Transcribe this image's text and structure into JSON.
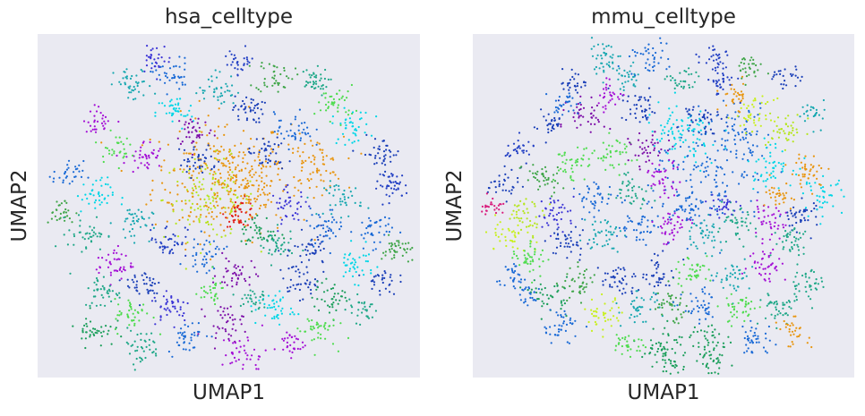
{
  "chart_data": [
    {
      "type": "scatter",
      "title": "hsa_celltype",
      "xlabel": "UMAP1",
      "ylabel": "UMAP2",
      "xticks": [],
      "yticks": [],
      "grid": false,
      "legend": "none",
      "background": "#eaeaf2",
      "clusters": [
        {
          "x": 0.48,
          "y": 0.58,
          "n": 260,
          "spread": 0.09,
          "color": "#e8950f"
        },
        {
          "x": 0.45,
          "y": 0.52,
          "n": 120,
          "spread": 0.06,
          "color": "#b5e61d"
        },
        {
          "x": 0.55,
          "y": 0.55,
          "n": 90,
          "spread": 0.05,
          "color": "#e8950f"
        },
        {
          "x": 0.53,
          "y": 0.48,
          "n": 40,
          "spread": 0.02,
          "color": "#e0201b"
        },
        {
          "x": 0.72,
          "y": 0.62,
          "n": 70,
          "spread": 0.04,
          "color": "#e8950f"
        },
        {
          "x": 0.36,
          "y": 0.77,
          "n": 40,
          "spread": 0.025,
          "color": "#00d6e6"
        },
        {
          "x": 0.41,
          "y": 0.72,
          "n": 40,
          "spread": 0.025,
          "color": "#7c0da8"
        },
        {
          "x": 0.28,
          "y": 0.64,
          "n": 40,
          "spread": 0.025,
          "color": "#a40fd6"
        },
        {
          "x": 0.62,
          "y": 0.88,
          "n": 40,
          "spread": 0.025,
          "color": "#3fa548"
        },
        {
          "x": 0.72,
          "y": 0.86,
          "n": 40,
          "spread": 0.02,
          "color": "#1fa888"
        },
        {
          "x": 0.55,
          "y": 0.78,
          "n": 40,
          "spread": 0.02,
          "color": "#1a3fb8"
        },
        {
          "x": 0.35,
          "y": 0.88,
          "n": 40,
          "spread": 0.025,
          "color": "#1a6ad6"
        },
        {
          "x": 0.25,
          "y": 0.85,
          "n": 40,
          "spread": 0.025,
          "color": "#18a8b0"
        },
        {
          "x": 0.78,
          "y": 0.8,
          "n": 40,
          "spread": 0.025,
          "color": "#4edc4e"
        },
        {
          "x": 0.82,
          "y": 0.73,
          "n": 40,
          "spread": 0.025,
          "color": "#00d6e6"
        },
        {
          "x": 0.9,
          "y": 0.65,
          "n": 40,
          "spread": 0.025,
          "color": "#1a3fb8"
        },
        {
          "x": 0.93,
          "y": 0.56,
          "n": 40,
          "spread": 0.02,
          "color": "#2340c4"
        },
        {
          "x": 0.8,
          "y": 0.52,
          "n": 40,
          "spread": 0.025,
          "color": "#18a8b0"
        },
        {
          "x": 0.66,
          "y": 0.5,
          "n": 40,
          "spread": 0.025,
          "color": "#3b34d6"
        },
        {
          "x": 0.88,
          "y": 0.43,
          "n": 40,
          "spread": 0.025,
          "color": "#1a6ad6"
        },
        {
          "x": 0.94,
          "y": 0.37,
          "n": 40,
          "spread": 0.02,
          "color": "#3fa548"
        },
        {
          "x": 0.83,
          "y": 0.33,
          "n": 40,
          "spread": 0.025,
          "color": "#00d6e6"
        },
        {
          "x": 0.72,
          "y": 0.37,
          "n": 40,
          "spread": 0.025,
          "color": "#1a3fb8"
        },
        {
          "x": 0.62,
          "y": 0.38,
          "n": 40,
          "spread": 0.025,
          "color": "#1fa888"
        },
        {
          "x": 0.52,
          "y": 0.3,
          "n": 40,
          "spread": 0.025,
          "color": "#7c0da8"
        },
        {
          "x": 0.44,
          "y": 0.36,
          "n": 40,
          "spread": 0.025,
          "color": "#1a6ad6"
        },
        {
          "x": 0.34,
          "y": 0.4,
          "n": 40,
          "spread": 0.025,
          "color": "#2340c4"
        },
        {
          "x": 0.25,
          "y": 0.45,
          "n": 40,
          "spread": 0.025,
          "color": "#18a8b0"
        },
        {
          "x": 0.15,
          "y": 0.53,
          "n": 40,
          "spread": 0.025,
          "color": "#00d6e6"
        },
        {
          "x": 0.08,
          "y": 0.59,
          "n": 30,
          "spread": 0.02,
          "color": "#1a6ad6"
        },
        {
          "x": 0.06,
          "y": 0.48,
          "n": 30,
          "spread": 0.02,
          "color": "#3fa548"
        },
        {
          "x": 0.13,
          "y": 0.42,
          "n": 40,
          "spread": 0.025,
          "color": "#1fa888"
        },
        {
          "x": 0.2,
          "y": 0.33,
          "n": 40,
          "spread": 0.025,
          "color": "#a40fd6"
        },
        {
          "x": 0.28,
          "y": 0.27,
          "n": 40,
          "spread": 0.025,
          "color": "#1a3fb8"
        },
        {
          "x": 0.35,
          "y": 0.21,
          "n": 40,
          "spread": 0.025,
          "color": "#3b34d6"
        },
        {
          "x": 0.25,
          "y": 0.18,
          "n": 40,
          "spread": 0.025,
          "color": "#4edc4e"
        },
        {
          "x": 0.17,
          "y": 0.25,
          "n": 40,
          "spread": 0.025,
          "color": "#1fa888"
        },
        {
          "x": 0.15,
          "y": 0.14,
          "n": 40,
          "spread": 0.025,
          "color": "#1a9e5a"
        },
        {
          "x": 0.27,
          "y": 0.09,
          "n": 40,
          "spread": 0.025,
          "color": "#1fa888"
        },
        {
          "x": 0.39,
          "y": 0.12,
          "n": 40,
          "spread": 0.025,
          "color": "#1a6ad6"
        },
        {
          "x": 0.49,
          "y": 0.16,
          "n": 40,
          "spread": 0.025,
          "color": "#7c0da8"
        },
        {
          "x": 0.54,
          "y": 0.07,
          "n": 40,
          "spread": 0.03,
          "color": "#a40fd6"
        },
        {
          "x": 0.62,
          "y": 0.2,
          "n": 40,
          "spread": 0.025,
          "color": "#00d6e6"
        },
        {
          "x": 0.68,
          "y": 0.28,
          "n": 40,
          "spread": 0.025,
          "color": "#1a3fb8"
        },
        {
          "x": 0.77,
          "y": 0.23,
          "n": 40,
          "spread": 0.025,
          "color": "#1a9e5a"
        },
        {
          "x": 0.73,
          "y": 0.14,
          "n": 40,
          "spread": 0.025,
          "color": "#4edc4e"
        },
        {
          "x": 0.66,
          "y": 0.1,
          "n": 30,
          "spread": 0.02,
          "color": "#a40fd6"
        },
        {
          "x": 0.85,
          "y": 0.2,
          "n": 30,
          "spread": 0.02,
          "color": "#1fa888"
        },
        {
          "x": 0.45,
          "y": 0.25,
          "n": 30,
          "spread": 0.02,
          "color": "#4edc4e"
        },
        {
          "x": 0.6,
          "y": 0.65,
          "n": 40,
          "spread": 0.025,
          "color": "#1a3fb8"
        },
        {
          "x": 0.67,
          "y": 0.72,
          "n": 40,
          "spread": 0.025,
          "color": "#1a6ad6"
        },
        {
          "x": 0.47,
          "y": 0.84,
          "n": 40,
          "spread": 0.025,
          "color": "#18a8b0"
        },
        {
          "x": 0.53,
          "y": 0.92,
          "n": 30,
          "spread": 0.02,
          "color": "#2340c4"
        },
        {
          "x": 0.31,
          "y": 0.93,
          "n": 30,
          "spread": 0.02,
          "color": "#3b34d6"
        },
        {
          "x": 0.16,
          "y": 0.75,
          "n": 30,
          "spread": 0.02,
          "color": "#a40fd6"
        },
        {
          "x": 0.42,
          "y": 0.63,
          "n": 40,
          "spread": 0.025,
          "color": "#1a3fb8"
        },
        {
          "x": 0.2,
          "y": 0.67,
          "n": 30,
          "spread": 0.02,
          "color": "#4edc4e"
        },
        {
          "x": 0.9,
          "y": 0.28,
          "n": 30,
          "spread": 0.02,
          "color": "#1a3fb8"
        },
        {
          "x": 0.56,
          "y": 0.23,
          "n": 30,
          "spread": 0.02,
          "color": "#1fa888"
        },
        {
          "x": 0.58,
          "y": 0.42,
          "n": 40,
          "spread": 0.025,
          "color": "#1a9e5a"
        },
        {
          "x": 0.75,
          "y": 0.44,
          "n": 40,
          "spread": 0.025,
          "color": "#1a6ad6"
        }
      ]
    },
    {
      "type": "scatter",
      "title": "mmu_celltype",
      "xlabel": "UMAP1",
      "ylabel": "UMAP2",
      "xticks": [],
      "yticks": [],
      "grid": false,
      "legend": "none",
      "background": "#eaeaf2",
      "clusters": [
        {
          "x": 0.62,
          "y": 0.58,
          "n": 140,
          "spread": 0.08,
          "color": "#1a6ad6"
        },
        {
          "x": 0.55,
          "y": 0.7,
          "n": 90,
          "spread": 0.05,
          "color": "#00d6e6"
        },
        {
          "x": 0.7,
          "y": 0.72,
          "n": 60,
          "spread": 0.04,
          "color": "#1a6ad6"
        },
        {
          "x": 0.78,
          "y": 0.62,
          "n": 50,
          "spread": 0.03,
          "color": "#00d6e6"
        },
        {
          "x": 0.74,
          "y": 0.76,
          "n": 40,
          "spread": 0.025,
          "color": "#c8f01e"
        },
        {
          "x": 0.82,
          "y": 0.72,
          "n": 40,
          "spread": 0.025,
          "color": "#b5e61d"
        },
        {
          "x": 0.69,
          "y": 0.82,
          "n": 30,
          "spread": 0.02,
          "color": "#e8950f"
        },
        {
          "x": 0.72,
          "y": 0.9,
          "n": 30,
          "spread": 0.02,
          "color": "#3fa548"
        },
        {
          "x": 0.55,
          "y": 0.86,
          "n": 30,
          "spread": 0.02,
          "color": "#1fa888"
        },
        {
          "x": 0.65,
          "y": 0.86,
          "n": 30,
          "spread": 0.02,
          "color": "#2340c4"
        },
        {
          "x": 0.4,
          "y": 0.87,
          "n": 30,
          "spread": 0.02,
          "color": "#18a8b0"
        },
        {
          "x": 0.27,
          "y": 0.86,
          "n": 30,
          "spread": 0.02,
          "color": "#1a3fb8"
        },
        {
          "x": 0.3,
          "y": 0.76,
          "n": 40,
          "spread": 0.025,
          "color": "#7c0da8"
        },
        {
          "x": 0.2,
          "y": 0.74,
          "n": 30,
          "spread": 0.02,
          "color": "#1a3fb8"
        },
        {
          "x": 0.12,
          "y": 0.66,
          "n": 30,
          "spread": 0.02,
          "color": "#2340c4"
        },
        {
          "x": 0.08,
          "y": 0.56,
          "n": 30,
          "spread": 0.02,
          "color": "#1a3fb8"
        },
        {
          "x": 0.18,
          "y": 0.58,
          "n": 40,
          "spread": 0.025,
          "color": "#3fa548"
        },
        {
          "x": 0.26,
          "y": 0.62,
          "n": 40,
          "spread": 0.025,
          "color": "#4edc4e"
        },
        {
          "x": 0.37,
          "y": 0.65,
          "n": 40,
          "spread": 0.025,
          "color": "#4edc4e"
        },
        {
          "x": 0.46,
          "y": 0.66,
          "n": 40,
          "spread": 0.025,
          "color": "#7c0da8"
        },
        {
          "x": 0.5,
          "y": 0.58,
          "n": 40,
          "spread": 0.025,
          "color": "#a40fd6"
        },
        {
          "x": 0.42,
          "y": 0.55,
          "n": 40,
          "spread": 0.025,
          "color": "#1fa888"
        },
        {
          "x": 0.32,
          "y": 0.52,
          "n": 40,
          "spread": 0.025,
          "color": "#1a6ad6"
        },
        {
          "x": 0.22,
          "y": 0.48,
          "n": 40,
          "spread": 0.025,
          "color": "#3b34d6"
        },
        {
          "x": 0.14,
          "y": 0.47,
          "n": 40,
          "spread": 0.025,
          "color": "#b5e61d"
        },
        {
          "x": 0.1,
          "y": 0.42,
          "n": 40,
          "spread": 0.03,
          "color": "#c8f01e"
        },
        {
          "x": 0.05,
          "y": 0.5,
          "n": 25,
          "spread": 0.015,
          "color": "#d91b7c"
        },
        {
          "x": 0.15,
          "y": 0.35,
          "n": 40,
          "spread": 0.025,
          "color": "#4edc4e"
        },
        {
          "x": 0.25,
          "y": 0.39,
          "n": 40,
          "spread": 0.025,
          "color": "#1a3fb8"
        },
        {
          "x": 0.34,
          "y": 0.42,
          "n": 40,
          "spread": 0.025,
          "color": "#18a8b0"
        },
        {
          "x": 0.43,
          "y": 0.44,
          "n": 40,
          "spread": 0.025,
          "color": "#1a6ad6"
        },
        {
          "x": 0.52,
          "y": 0.44,
          "n": 40,
          "spread": 0.025,
          "color": "#a40fd6"
        },
        {
          "x": 0.6,
          "y": 0.42,
          "n": 40,
          "spread": 0.025,
          "color": "#18a8b0"
        },
        {
          "x": 0.69,
          "y": 0.44,
          "n": 40,
          "spread": 0.025,
          "color": "#1fa888"
        },
        {
          "x": 0.77,
          "y": 0.45,
          "n": 40,
          "spread": 0.025,
          "color": "#a40fd6"
        },
        {
          "x": 0.86,
          "y": 0.47,
          "n": 40,
          "spread": 0.025,
          "color": "#1a3fb8"
        },
        {
          "x": 0.92,
          "y": 0.53,
          "n": 40,
          "spread": 0.025,
          "color": "#00d6e6"
        },
        {
          "x": 0.88,
          "y": 0.6,
          "n": 40,
          "spread": 0.025,
          "color": "#e8950f"
        },
        {
          "x": 0.84,
          "y": 0.4,
          "n": 40,
          "spread": 0.025,
          "color": "#1fa888"
        },
        {
          "x": 0.77,
          "y": 0.33,
          "n": 40,
          "spread": 0.025,
          "color": "#a40fd6"
        },
        {
          "x": 0.68,
          "y": 0.3,
          "n": 40,
          "spread": 0.025,
          "color": "#18a8b0"
        },
        {
          "x": 0.58,
          "y": 0.31,
          "n": 40,
          "spread": 0.025,
          "color": "#4edc4e"
        },
        {
          "x": 0.49,
          "y": 0.3,
          "n": 40,
          "spread": 0.025,
          "color": "#1a3fb8"
        },
        {
          "x": 0.38,
          "y": 0.28,
          "n": 40,
          "spread": 0.025,
          "color": "#1a3fb8"
        },
        {
          "x": 0.28,
          "y": 0.27,
          "n": 40,
          "spread": 0.025,
          "color": "#3fa548"
        },
        {
          "x": 0.2,
          "y": 0.24,
          "n": 40,
          "spread": 0.025,
          "color": "#1a9e5a"
        },
        {
          "x": 0.23,
          "y": 0.15,
          "n": 40,
          "spread": 0.025,
          "color": "#1a6ad6"
        },
        {
          "x": 0.34,
          "y": 0.18,
          "n": 40,
          "spread": 0.025,
          "color": "#c8f01e"
        },
        {
          "x": 0.44,
          "y": 0.2,
          "n": 40,
          "spread": 0.025,
          "color": "#18a8b0"
        },
        {
          "x": 0.52,
          "y": 0.21,
          "n": 40,
          "spread": 0.025,
          "color": "#3fa548"
        },
        {
          "x": 0.6,
          "y": 0.2,
          "n": 40,
          "spread": 0.025,
          "color": "#1a6ad6"
        },
        {
          "x": 0.7,
          "y": 0.2,
          "n": 40,
          "spread": 0.025,
          "color": "#4edc4e"
        },
        {
          "x": 0.8,
          "y": 0.2,
          "n": 40,
          "spread": 0.025,
          "color": "#1fa888"
        },
        {
          "x": 0.87,
          "y": 0.27,
          "n": 40,
          "spread": 0.025,
          "color": "#1fa888"
        },
        {
          "x": 0.84,
          "y": 0.13,
          "n": 30,
          "spread": 0.02,
          "color": "#e8950f"
        },
        {
          "x": 0.74,
          "y": 0.11,
          "n": 40,
          "spread": 0.025,
          "color": "#1a6ad6"
        },
        {
          "x": 0.62,
          "y": 0.11,
          "n": 40,
          "spread": 0.025,
          "color": "#1a9e5a"
        },
        {
          "x": 0.5,
          "y": 0.1,
          "n": 40,
          "spread": 0.025,
          "color": "#1a9e5a"
        },
        {
          "x": 0.41,
          "y": 0.1,
          "n": 30,
          "spread": 0.02,
          "color": "#4edc4e"
        },
        {
          "x": 0.52,
          "y": 0.03,
          "n": 40,
          "spread": 0.025,
          "color": "#1a9e5a"
        },
        {
          "x": 0.63,
          "y": 0.04,
          "n": 30,
          "spread": 0.02,
          "color": "#1a9e5a"
        },
        {
          "x": 0.44,
          "y": 0.78,
          "n": 40,
          "spread": 0.025,
          "color": "#1a3fb8"
        },
        {
          "x": 0.36,
          "y": 0.82,
          "n": 30,
          "spread": 0.02,
          "color": "#a40fd6"
        },
        {
          "x": 0.24,
          "y": 0.8,
          "n": 30,
          "spread": 0.02,
          "color": "#1a6ad6"
        },
        {
          "x": 0.46,
          "y": 0.93,
          "n": 40,
          "spread": 0.025,
          "color": "#1a6ad6"
        },
        {
          "x": 0.34,
          "y": 0.93,
          "n": 40,
          "spread": 0.025,
          "color": "#18a8b0"
        },
        {
          "x": 0.64,
          "y": 0.93,
          "n": 30,
          "spread": 0.02,
          "color": "#2340c4"
        },
        {
          "x": 0.6,
          "y": 0.76,
          "n": 40,
          "spread": 0.025,
          "color": "#1a3fb8"
        },
        {
          "x": 0.56,
          "y": 0.5,
          "n": 40,
          "spread": 0.025,
          "color": "#1a6ad6"
        },
        {
          "x": 0.65,
          "y": 0.5,
          "n": 30,
          "spread": 0.02,
          "color": "#3b34d6"
        },
        {
          "x": 0.14,
          "y": 0.24,
          "n": 25,
          "spread": 0.02,
          "color": "#1a6ad6"
        },
        {
          "x": 0.1,
          "y": 0.3,
          "n": 25,
          "spread": 0.02,
          "color": "#1a6ad6"
        },
        {
          "x": 0.82,
          "y": 0.87,
          "n": 25,
          "spread": 0.02,
          "color": "#1a3fb8"
        },
        {
          "x": 0.9,
          "y": 0.77,
          "n": 25,
          "spread": 0.02,
          "color": "#18a8b0"
        },
        {
          "x": 0.81,
          "y": 0.53,
          "n": 30,
          "spread": 0.02,
          "color": "#e8950f"
        }
      ]
    }
  ]
}
